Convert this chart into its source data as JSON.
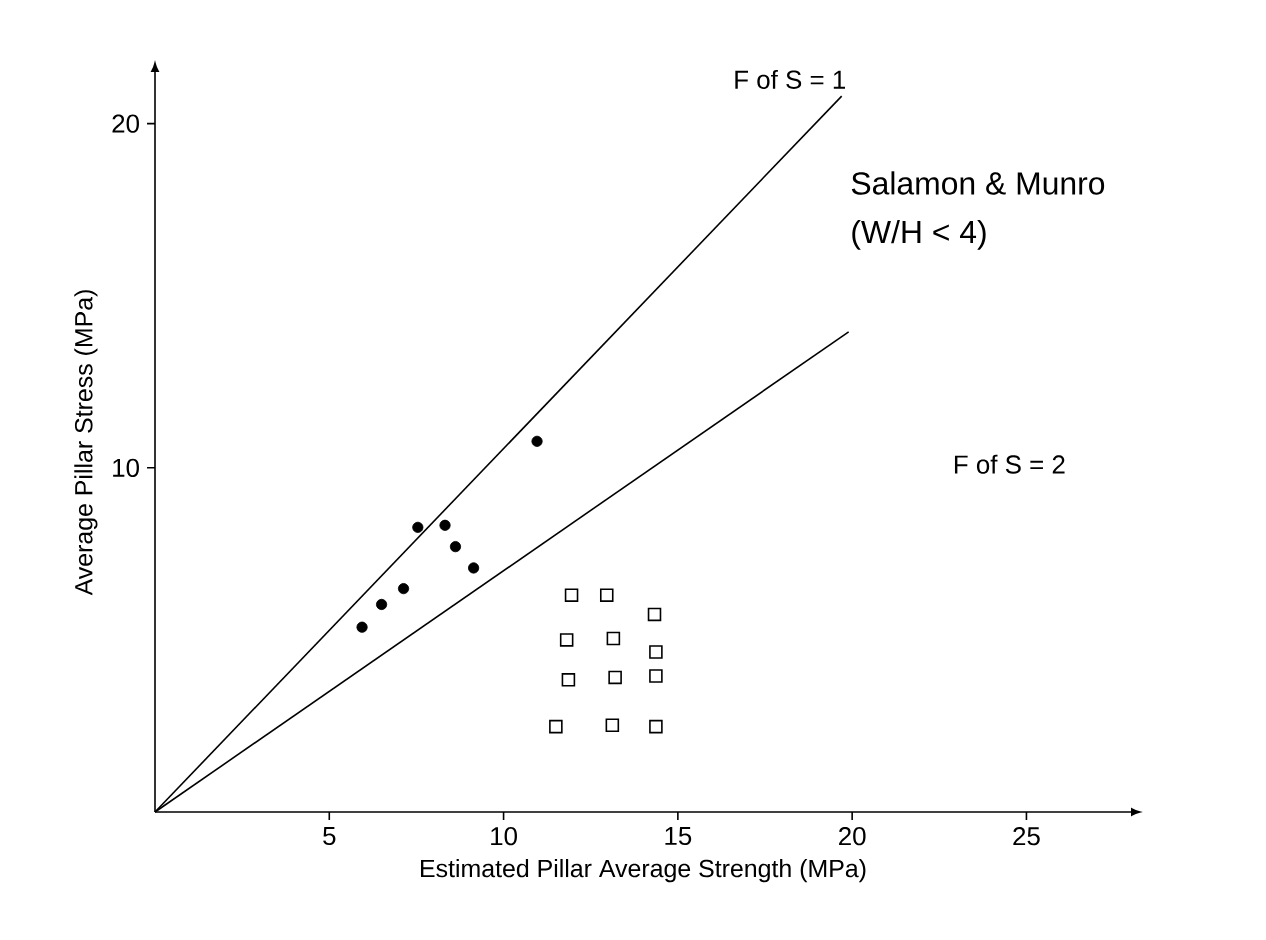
{
  "chart_data": {
    "type": "scatter",
    "xlabel": "Estimated Pillar Average Strength (MPa)",
    "ylabel": "Average Pillar Stress (MPa)",
    "xlim": [
      0,
      28
    ],
    "ylim": [
      0,
      21.5
    ],
    "xticks": [
      5,
      10,
      15,
      20,
      25
    ],
    "yticks": [
      10,
      20
    ],
    "series": [
      {
        "type": "line",
        "color": "#000000",
        "marker": "none",
        "x": [
          0,
          19.7
        ],
        "values": [
          0,
          20.8
        ]
      },
      {
        "type": "line",
        "color": "#000000",
        "marker": "none",
        "x": [
          0,
          19.9
        ],
        "values": [
          0,
          13.95
        ]
      },
      {
        "color": "#000000",
        "marker": "circle",
        "x": [
          5.94,
          6.5,
          7.13,
          7.54,
          8.32,
          8.62,
          9.14,
          10.96
        ],
        "values": [
          5.37,
          6.03,
          6.49,
          8.27,
          8.33,
          7.71,
          7.09,
          10.77
        ]
      },
      {
        "color": "#000000",
        "marker": "square",
        "x": [
          11.95,
          12.96,
          14.33,
          11.81,
          13.15,
          14.37,
          11.86,
          13.2,
          14.37,
          11.5,
          13.12,
          14.37
        ],
        "values": [
          6.3,
          6.3,
          5.74,
          5.0,
          5.04,
          4.65,
          3.84,
          3.91,
          3.95,
          2.48,
          2.52,
          2.48
        ]
      }
    ],
    "annotations": [
      "F of S = 1",
      "F of S = 2",
      "Salamon & Munro",
      "(W/H < 4)"
    ]
  }
}
